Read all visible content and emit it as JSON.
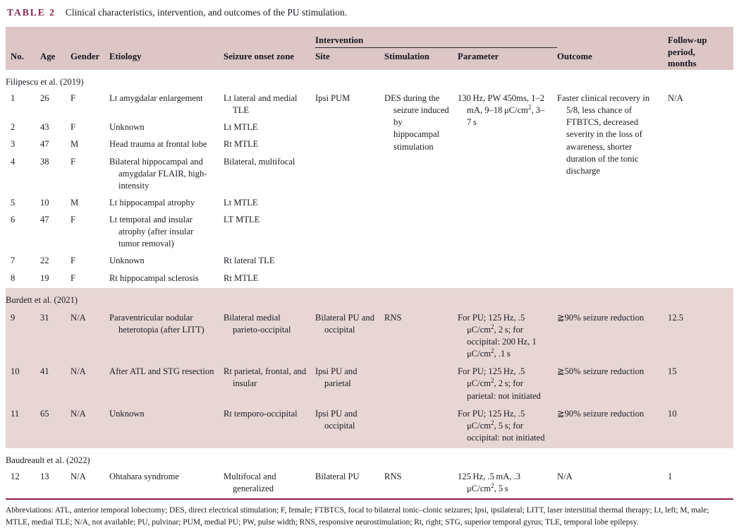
{
  "title": {
    "label": "TABLE 2",
    "text": "Clinical characteristics, intervention, and outcomes of the PU stimulation."
  },
  "colors": {
    "accent_maroon": "#8e2150",
    "header_band": "#dcc6c6",
    "section_band": "#e7d6d3",
    "text": "#1b1b24"
  },
  "table": {
    "intervention_group_label": "Intervention",
    "followup_label": "Follow-up period, months",
    "columns": [
      "No.",
      "Age",
      "Gender",
      "Etiology",
      "Seizure onset zone",
      "Site",
      "Stimulation",
      "Parameter",
      "Outcome"
    ],
    "col_keys": [
      "no",
      "age",
      "gender",
      "etiology",
      "seizure-onset-zone",
      "site",
      "stimulation",
      "parameter",
      "outcome",
      "followup-months"
    ],
    "sections": [
      {
        "source": "Filipescu et al. (2019)",
        "banded": false,
        "rows": [
          {
            "cells": [
              "1",
              "26",
              "F",
              "Lt amygdalar enlargement",
              "Lt lateral and medial TLE",
              {
                "t": "Ipsi PUM",
                "rs": 8
              },
              {
                "t": "DES during the seizure induced by hippocampal stimulation",
                "rs": 8
              },
              {
                "t": "130 Hz, PW 450ms, 1–2 mA, 9–18 μC/cm², 3–7 s",
                "rs": 8
              },
              {
                "t": "Faster clinical recovery in 5/8, less chance of FTBTCS, decreased severity in the loss of awareness, shorter duration of the tonic discharge",
                "rs": 8
              },
              {
                "t": "N/A",
                "rs": 8
              }
            ]
          },
          {
            "cells": [
              "2",
              "43",
              "F",
              "Unknown",
              "Lt MTLE",
              null,
              null,
              null,
              null,
              null
            ]
          },
          {
            "cells": [
              "3",
              "47",
              "M",
              "Head trauma at frontal lobe",
              "Rt MTLE",
              null,
              null,
              null,
              null,
              null
            ]
          },
          {
            "cells": [
              "4",
              "38",
              "F",
              "Bilateral hippocampal and amygdalar FLAIR, high-intensity",
              "Bilateral, multifocal",
              null,
              null,
              null,
              null,
              null
            ]
          },
          {
            "cells": [
              "5",
              "10",
              "M",
              "Lt hippocampal atrophy",
              "Lt MTLE",
              null,
              null,
              null,
              null,
              null
            ]
          },
          {
            "cells": [
              "6",
              "47",
              "F",
              "Lt temporal and insular atrophy (after insular tumor removal)",
              "LT MTLE",
              null,
              null,
              null,
              null,
              null
            ]
          },
          {
            "cells": [
              "7",
              "22",
              "F",
              "Unknown",
              "Rt lateral TLE",
              null,
              null,
              null,
              null,
              null
            ]
          },
          {
            "cells": [
              "8",
              "19",
              "F",
              "Rt hippocampal sclerosis",
              "Rt MTLE",
              null,
              null,
              null,
              null,
              null
            ]
          }
        ]
      },
      {
        "source": "Burdett et al. (2021)",
        "banded": true,
        "rows": [
          {
            "cells": [
              "9",
              "31",
              "N/A",
              "Paraventricular nodular heterotopia (after LITT)",
              "Bilateral medial parieto-occipital",
              "Bilateral PU and occipital",
              {
                "t": "RNS",
                "rs": 3
              },
              "For PU; 125 Hz, .5 μC/cm², 2 s; for occipital: 200 Hz, 1 μC/cm², .1 s",
              "≧90% seizure reduction",
              "12.5"
            ]
          },
          {
            "cells": [
              "10",
              "41",
              "N/A",
              "After ATL and STG resection",
              "Rt parietal, frontal, and insular",
              "Ipsi PU and parietal",
              null,
              "For PU; 125 Hz, .5 μC/cm², 2 s; for parietal: not initiated",
              "≧50% seizure reduction",
              "15"
            ]
          },
          {
            "cells": [
              "11",
              "65",
              "N/A",
              "Unknown",
              "Rt temporo-occipital",
              "Ipsi PU and occipital",
              null,
              "For PU; 125 Hz, .5 μC/cm², 5 s; for occipital: not initiated",
              "≧90% seizure reduction",
              "10"
            ]
          }
        ]
      },
      {
        "source": "Baudreault et al. (2022)",
        "banded": false,
        "rows": [
          {
            "cells": [
              "12",
              "13",
              "N/A",
              "Ohtahara syndrome",
              "Multifocal and generalized",
              "Bilateral PU",
              "RNS",
              "125 Hz, .5 mA, .3 μC/cm², 5 s",
              "N/A",
              "1"
            ]
          }
        ]
      }
    ]
  },
  "footnote": "Abbreviations: ATL, anterior temporal lobectomy; DES, direct electrical stimulation; F, female; FTBTCS, focal to bilateral tonic–clonic seizures; Ipsi, ipsilateral; LITT, laser interstitial thermal therapy; Lt, left; M, male; MTLE, medial TLE; N/A, not available; PU, pulvinar; PUM, medial PU; PW, pulse width; RNS, responsive neurostimulation; Rt, right; STG, superior temporal gyrus; TLE, temporal lobe epilepsy."
}
